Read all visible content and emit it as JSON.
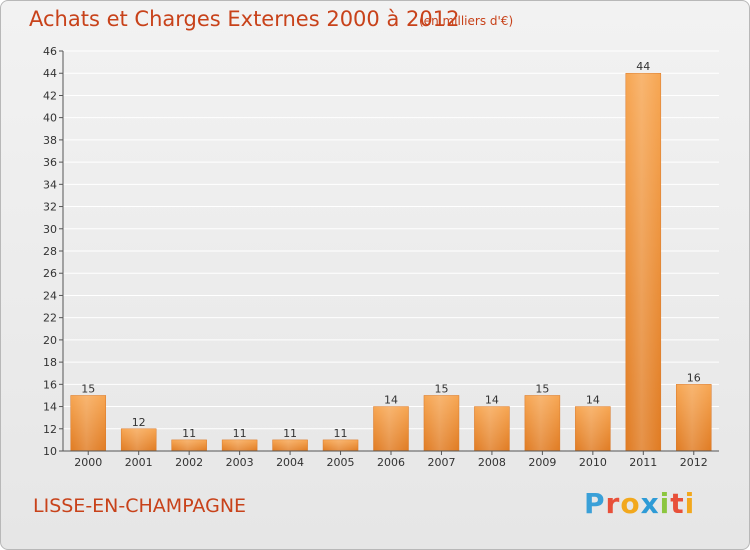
{
  "header": {
    "title": "Achats et Charges Externes 2000 à 2012",
    "unit": "(en milliers d'€)"
  },
  "footer": {
    "place": "LISSE-EN-CHAMPAGNE",
    "logo_text": "Proxiti",
    "logo_colors": [
      "#3aa0d8",
      "#e8503a",
      "#f2a81d",
      "#2e9bd6",
      "#8cc63f",
      "#e8503a",
      "#f2a81d"
    ]
  },
  "colors": {
    "title": "#c8421a",
    "bar_light": "#f7a652",
    "bar_dark": "#e07b22",
    "grid": "#ffffff",
    "axis": "#555555"
  },
  "chart_data": {
    "type": "bar",
    "title": "Achats et Charges Externes 2000 à 2012",
    "subtitle": "(en milliers d'€)",
    "categories": [
      "2000",
      "2001",
      "2002",
      "2003",
      "2004",
      "2005",
      "2006",
      "2007",
      "2008",
      "2009",
      "2010",
      "2011",
      "2012"
    ],
    "values": [
      15,
      12,
      11,
      11,
      11,
      11,
      14,
      15,
      14,
      15,
      14,
      44,
      16
    ],
    "ylim": [
      10,
      46
    ],
    "yticks": [
      10,
      12,
      14,
      16,
      18,
      20,
      22,
      24,
      26,
      28,
      30,
      32,
      34,
      36,
      38,
      40,
      42,
      44,
      46
    ],
    "grid": true,
    "legend": "none"
  }
}
